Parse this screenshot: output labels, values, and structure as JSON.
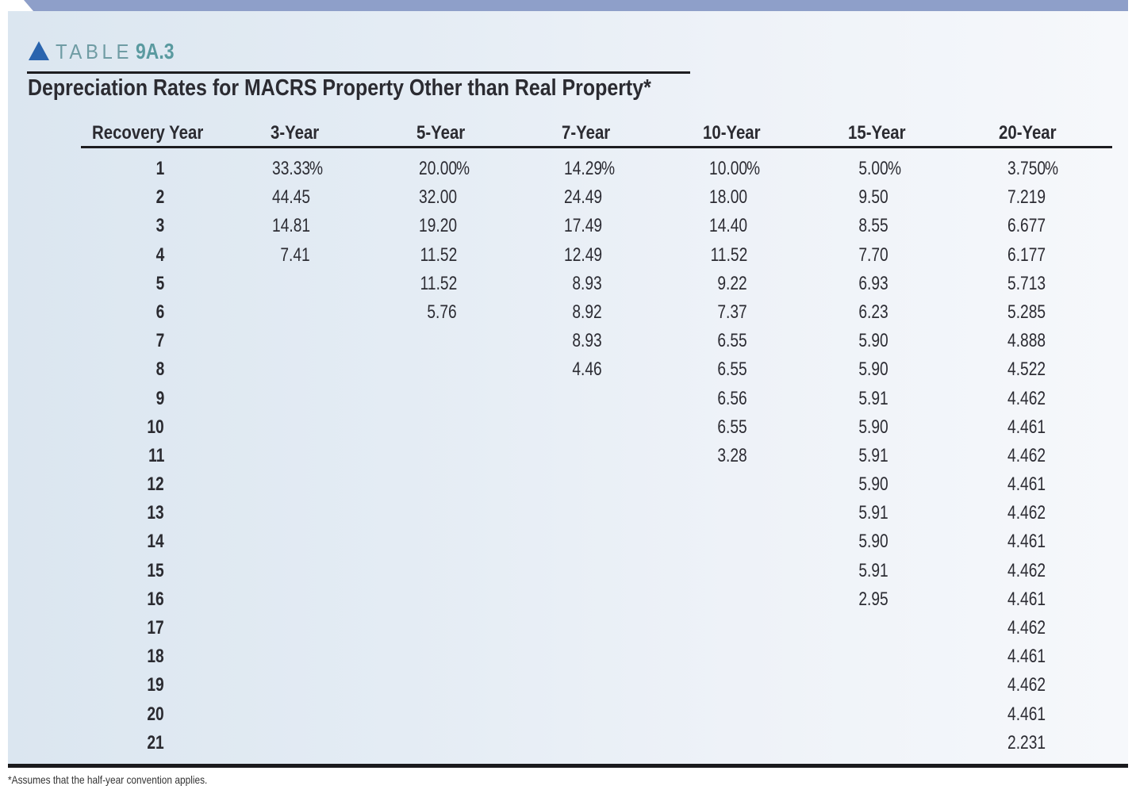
{
  "header": {
    "table_word": "TABLE",
    "table_number": "9A.3",
    "title": "Depreciation Rates for MACRS Property Other than Real Property*",
    "icon": "triangle-up-icon"
  },
  "table": {
    "columns": [
      "Recovery Year",
      "3-Year",
      "5-Year",
      "7-Year",
      "10-Year",
      "15-Year",
      "20-Year"
    ],
    "recovery_years": [
      "1",
      "2",
      "3",
      "4",
      "5",
      "6",
      "7",
      "8",
      "9",
      "10",
      "11",
      "12",
      "13",
      "14",
      "15",
      "16",
      "17",
      "18",
      "19",
      "20",
      "21"
    ],
    "rates": {
      "3-Year": [
        "33.33",
        "44.45",
        "14.81",
        "7.41"
      ],
      "5-Year": [
        "20.00",
        "32.00",
        "19.20",
        "11.52",
        "11.52",
        "5.76"
      ],
      "7-Year": [
        "14.29",
        "24.49",
        "17.49",
        "12.49",
        "8.93",
        "8.92",
        "8.93",
        "4.46"
      ],
      "10-Year": [
        "10.00",
        "18.00",
        "14.40",
        "11.52",
        "9.22",
        "7.37",
        "6.55",
        "6.55",
        "6.56",
        "6.55",
        "3.28"
      ],
      "15-Year": [
        "5.00",
        "9.50",
        "8.55",
        "7.70",
        "6.93",
        "6.23",
        "5.90",
        "5.90",
        "5.91",
        "5.90",
        "5.91",
        "5.90",
        "5.91",
        "5.90",
        "5.91",
        "2.95"
      ],
      "20-Year": [
        "3.750",
        "7.219",
        "6.677",
        "6.177",
        "5.713",
        "5.285",
        "4.888",
        "4.522",
        "4.462",
        "4.461",
        "4.462",
        "4.461",
        "4.462",
        "4.461",
        "4.462",
        "4.461",
        "4.462",
        "4.461",
        "4.462",
        "4.461",
        "2.231"
      ]
    },
    "first_row_suffix": "%"
  },
  "footnote": "*Assumes that the half-year convention applies.",
  "colors": {
    "banner": "#8e9fc9",
    "triangle": "#2a64ae",
    "label": "#6f9ca4",
    "panel_left": "#dbe6f0",
    "panel_right": "#f6f8fb",
    "rules": "#1d1d20"
  }
}
